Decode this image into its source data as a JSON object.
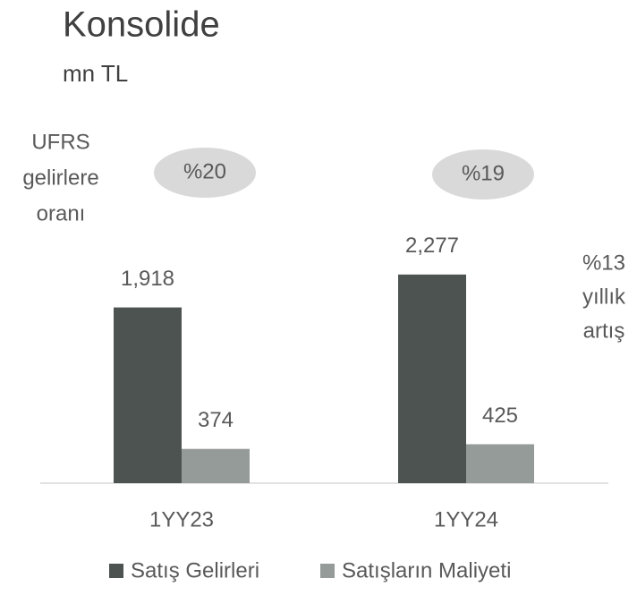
{
  "chart_data": {
    "type": "bar",
    "title": "Konsolide",
    "subtitle": "mn TL",
    "categories": [
      "1YY23",
      "1YY24"
    ],
    "series": [
      {
        "name": "Satış Gelirleri",
        "color": "#4d5351",
        "values": [
          1918,
          2277
        ],
        "value_labels": [
          "1,918",
          "2,277"
        ]
      },
      {
        "name": "Satışların Maliyeti",
        "color": "#959b99",
        "values": [
          374,
          425
        ]
      }
    ],
    "ylim": [
      0,
      2500
    ],
    "ratio_label": [
      "UFRS",
      "gelirlere",
      "oranı"
    ],
    "ratio_values": [
      "%20",
      "%19"
    ],
    "growth_label": [
      "%13",
      "yıllık",
      "artış"
    ]
  }
}
